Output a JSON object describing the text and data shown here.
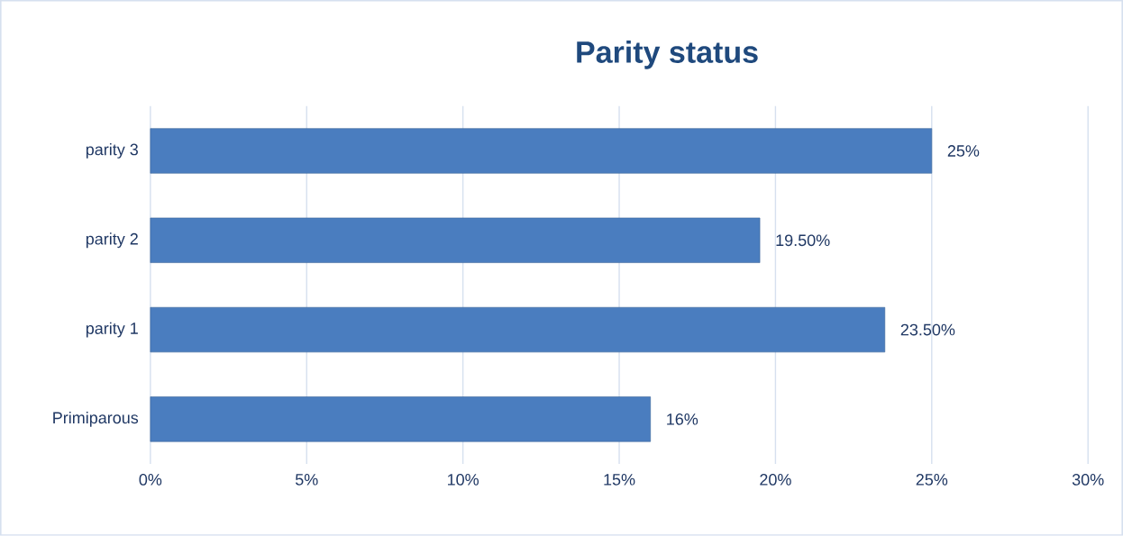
{
  "chart_data": {
    "type": "bar",
    "orientation": "horizontal",
    "title": "Parity status",
    "categories": [
      "parity 3",
      "parity 2",
      "parity 1",
      "Primiparous"
    ],
    "values": [
      25,
      19.5,
      23.5,
      16
    ],
    "value_labels": [
      "25%",
      "19.50%",
      "23.50%",
      "16%"
    ],
    "color": "#4a7dbf",
    "xlim": [
      0,
      30
    ],
    "xticks": [
      {
        "value": 0,
        "label": "0%"
      },
      {
        "value": 5,
        "label": "5%"
      },
      {
        "value": 10,
        "label": "10%"
      },
      {
        "value": 15,
        "label": "15%"
      },
      {
        "value": 20,
        "label": "20%"
      },
      {
        "value": 25,
        "label": "25%"
      },
      {
        "value": 30,
        "label": "30%"
      }
    ],
    "grid": "x"
  }
}
